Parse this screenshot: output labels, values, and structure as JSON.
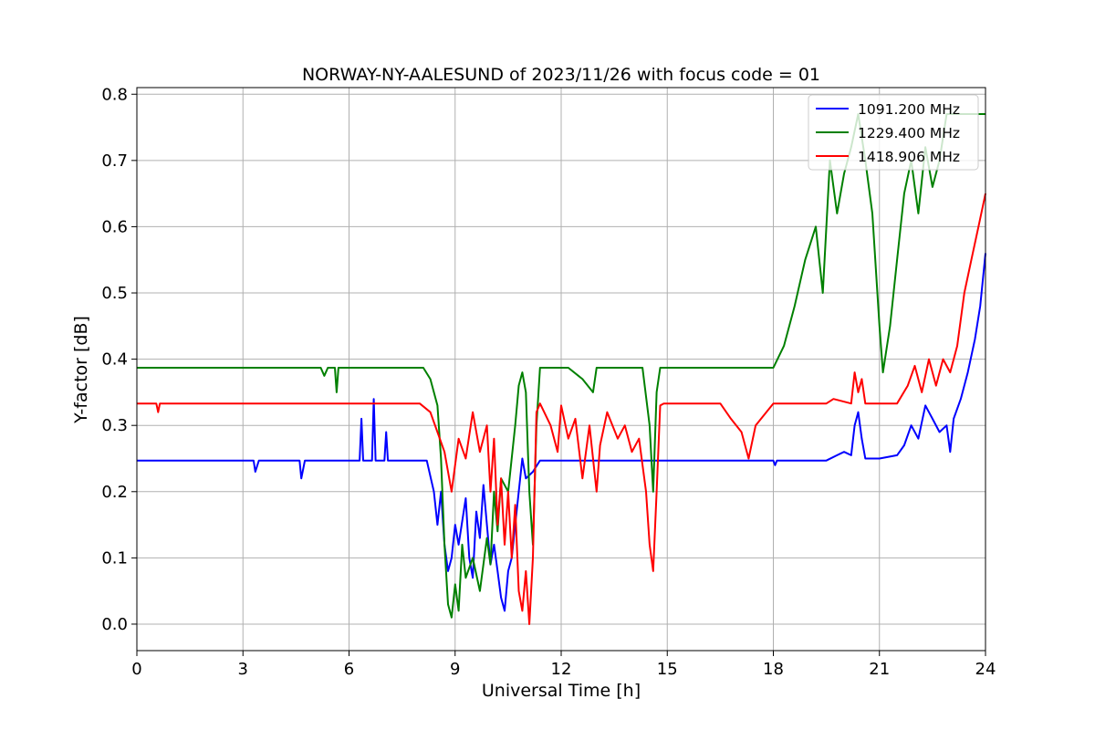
{
  "chart_data": {
    "type": "line",
    "title": "NORWAY-NY-AALESUND of 2023/11/26 with focus code = 01",
    "xlabel": "Universal Time [h]",
    "ylabel": "Y-factor [dB]",
    "xlim": [
      0,
      24
    ],
    "ylim": [
      -0.04,
      0.81
    ],
    "xticks": [
      0,
      3,
      6,
      9,
      12,
      15,
      18,
      21,
      24
    ],
    "yticks": [
      0.0,
      0.1,
      0.2,
      0.3,
      0.4,
      0.5,
      0.6,
      0.7,
      0.8
    ],
    "grid": true,
    "legend_position": "top-right",
    "series": [
      {
        "name": "1091.200 MHz",
        "color": "#0000ff",
        "points": [
          [
            0,
            0.247
          ],
          [
            3.3,
            0.247
          ],
          [
            3.35,
            0.23
          ],
          [
            3.45,
            0.247
          ],
          [
            4.6,
            0.247
          ],
          [
            4.65,
            0.22
          ],
          [
            4.75,
            0.247
          ],
          [
            6.3,
            0.247
          ],
          [
            6.35,
            0.31
          ],
          [
            6.4,
            0.247
          ],
          [
            6.65,
            0.247
          ],
          [
            6.7,
            0.34
          ],
          [
            6.75,
            0.247
          ],
          [
            7.0,
            0.247
          ],
          [
            7.05,
            0.29
          ],
          [
            7.1,
            0.247
          ],
          [
            8.2,
            0.247
          ],
          [
            8.4,
            0.2
          ],
          [
            8.5,
            0.15
          ],
          [
            8.6,
            0.2
          ],
          [
            8.7,
            0.12
          ],
          [
            8.8,
            0.08
          ],
          [
            8.9,
            0.1
          ],
          [
            9.0,
            0.15
          ],
          [
            9.1,
            0.12
          ],
          [
            9.3,
            0.19
          ],
          [
            9.4,
            0.1
          ],
          [
            9.5,
            0.07
          ],
          [
            9.6,
            0.17
          ],
          [
            9.7,
            0.13
          ],
          [
            9.8,
            0.21
          ],
          [
            9.9,
            0.15
          ],
          [
            10.0,
            0.09
          ],
          [
            10.1,
            0.12
          ],
          [
            10.2,
            0.08
          ],
          [
            10.3,
            0.04
          ],
          [
            10.4,
            0.02
          ],
          [
            10.5,
            0.08
          ],
          [
            10.6,
            0.1
          ],
          [
            10.7,
            0.15
          ],
          [
            10.8,
            0.2
          ],
          [
            10.9,
            0.25
          ],
          [
            11.0,
            0.22
          ],
          [
            11.2,
            0.23
          ],
          [
            11.4,
            0.247
          ],
          [
            18.0,
            0.247
          ],
          [
            18.05,
            0.24
          ],
          [
            18.1,
            0.247
          ],
          [
            19.5,
            0.247
          ],
          [
            19.8,
            0.255
          ],
          [
            20.0,
            0.26
          ],
          [
            20.2,
            0.255
          ],
          [
            20.3,
            0.3
          ],
          [
            20.4,
            0.32
          ],
          [
            20.5,
            0.28
          ],
          [
            20.6,
            0.25
          ],
          [
            21.0,
            0.25
          ],
          [
            21.5,
            0.255
          ],
          [
            21.7,
            0.27
          ],
          [
            21.9,
            0.3
          ],
          [
            22.1,
            0.28
          ],
          [
            22.3,
            0.33
          ],
          [
            22.5,
            0.31
          ],
          [
            22.7,
            0.29
          ],
          [
            22.9,
            0.3
          ],
          [
            23.0,
            0.26
          ],
          [
            23.1,
            0.31
          ],
          [
            23.3,
            0.34
          ],
          [
            23.5,
            0.38
          ],
          [
            23.7,
            0.43
          ],
          [
            23.85,
            0.48
          ],
          [
            24.0,
            0.56
          ]
        ]
      },
      {
        "name": "1229.400 MHz",
        "color": "#008000",
        "points": [
          [
            0,
            0.387
          ],
          [
            5.2,
            0.387
          ],
          [
            5.3,
            0.375
          ],
          [
            5.4,
            0.387
          ],
          [
            5.6,
            0.387
          ],
          [
            5.65,
            0.35
          ],
          [
            5.7,
            0.387
          ],
          [
            8.1,
            0.387
          ],
          [
            8.3,
            0.37
          ],
          [
            8.5,
            0.33
          ],
          [
            8.6,
            0.25
          ],
          [
            8.7,
            0.12
          ],
          [
            8.8,
            0.03
          ],
          [
            8.9,
            0.01
          ],
          [
            9.0,
            0.06
          ],
          [
            9.1,
            0.02
          ],
          [
            9.2,
            0.12
          ],
          [
            9.3,
            0.07
          ],
          [
            9.5,
            0.1
          ],
          [
            9.7,
            0.05
          ],
          [
            9.9,
            0.13
          ],
          [
            10.0,
            0.09
          ],
          [
            10.1,
            0.2
          ],
          [
            10.2,
            0.14
          ],
          [
            10.3,
            0.22
          ],
          [
            10.5,
            0.2
          ],
          [
            10.7,
            0.3
          ],
          [
            10.8,
            0.36
          ],
          [
            10.9,
            0.38
          ],
          [
            11.0,
            0.35
          ],
          [
            11.1,
            0.2
          ],
          [
            11.2,
            0.12
          ],
          [
            11.3,
            0.3
          ],
          [
            11.4,
            0.387
          ],
          [
            12.2,
            0.387
          ],
          [
            12.6,
            0.37
          ],
          [
            12.9,
            0.35
          ],
          [
            13.0,
            0.387
          ],
          [
            14.3,
            0.387
          ],
          [
            14.5,
            0.3
          ],
          [
            14.6,
            0.2
          ],
          [
            14.7,
            0.35
          ],
          [
            14.8,
            0.387
          ],
          [
            18.0,
            0.387
          ],
          [
            18.3,
            0.42
          ],
          [
            18.6,
            0.48
          ],
          [
            18.9,
            0.55
          ],
          [
            19.2,
            0.6
          ],
          [
            19.4,
            0.5
          ],
          [
            19.6,
            0.7
          ],
          [
            19.8,
            0.62
          ],
          [
            20.0,
            0.68
          ],
          [
            20.2,
            0.72
          ],
          [
            20.4,
            0.77
          ],
          [
            20.6,
            0.7
          ],
          [
            20.8,
            0.62
          ],
          [
            21.0,
            0.45
          ],
          [
            21.1,
            0.38
          ],
          [
            21.3,
            0.45
          ],
          [
            21.5,
            0.55
          ],
          [
            21.7,
            0.65
          ],
          [
            21.9,
            0.7
          ],
          [
            22.1,
            0.62
          ],
          [
            22.3,
            0.72
          ],
          [
            22.5,
            0.66
          ],
          [
            22.7,
            0.7
          ],
          [
            22.9,
            0.77
          ],
          [
            23.2,
            0.77
          ],
          [
            24.0,
            0.77
          ]
        ]
      },
      {
        "name": "1418.906 MHz",
        "color": "#ff0000",
        "points": [
          [
            0,
            0.333
          ],
          [
            0.55,
            0.333
          ],
          [
            0.6,
            0.32
          ],
          [
            0.65,
            0.333
          ],
          [
            8.0,
            0.333
          ],
          [
            8.3,
            0.32
          ],
          [
            8.5,
            0.29
          ],
          [
            8.7,
            0.26
          ],
          [
            8.9,
            0.2
          ],
          [
            9.1,
            0.28
          ],
          [
            9.3,
            0.25
          ],
          [
            9.5,
            0.32
          ],
          [
            9.7,
            0.26
          ],
          [
            9.9,
            0.3
          ],
          [
            10.0,
            0.2
          ],
          [
            10.1,
            0.28
          ],
          [
            10.2,
            0.15
          ],
          [
            10.3,
            0.22
          ],
          [
            10.4,
            0.12
          ],
          [
            10.5,
            0.2
          ],
          [
            10.6,
            0.1
          ],
          [
            10.7,
            0.18
          ],
          [
            10.8,
            0.05
          ],
          [
            10.9,
            0.02
          ],
          [
            11.0,
            0.08
          ],
          [
            11.1,
            0.0
          ],
          [
            11.2,
            0.1
          ],
          [
            11.3,
            0.32
          ],
          [
            11.4,
            0.333
          ],
          [
            11.7,
            0.3
          ],
          [
            11.9,
            0.26
          ],
          [
            12.0,
            0.33
          ],
          [
            12.2,
            0.28
          ],
          [
            12.4,
            0.31
          ],
          [
            12.6,
            0.22
          ],
          [
            12.8,
            0.3
          ],
          [
            13.0,
            0.2
          ],
          [
            13.1,
            0.27
          ],
          [
            13.3,
            0.32
          ],
          [
            13.6,
            0.28
          ],
          [
            13.8,
            0.3
          ],
          [
            14.0,
            0.26
          ],
          [
            14.2,
            0.28
          ],
          [
            14.4,
            0.2
          ],
          [
            14.5,
            0.12
          ],
          [
            14.6,
            0.08
          ],
          [
            14.7,
            0.2
          ],
          [
            14.8,
            0.33
          ],
          [
            14.9,
            0.333
          ],
          [
            16.5,
            0.333
          ],
          [
            16.8,
            0.31
          ],
          [
            17.1,
            0.29
          ],
          [
            17.3,
            0.25
          ],
          [
            17.5,
            0.3
          ],
          [
            17.8,
            0.32
          ],
          [
            18.0,
            0.333
          ],
          [
            19.5,
            0.333
          ],
          [
            19.7,
            0.34
          ],
          [
            20.2,
            0.333
          ],
          [
            20.3,
            0.38
          ],
          [
            20.4,
            0.35
          ],
          [
            20.5,
            0.37
          ],
          [
            20.6,
            0.333
          ],
          [
            21.5,
            0.333
          ],
          [
            21.8,
            0.36
          ],
          [
            22.0,
            0.39
          ],
          [
            22.2,
            0.35
          ],
          [
            22.4,
            0.4
          ],
          [
            22.6,
            0.36
          ],
          [
            22.8,
            0.4
          ],
          [
            23.0,
            0.38
          ],
          [
            23.2,
            0.42
          ],
          [
            23.4,
            0.5
          ],
          [
            23.6,
            0.55
          ],
          [
            23.8,
            0.6
          ],
          [
            24.0,
            0.65
          ]
        ]
      }
    ]
  }
}
